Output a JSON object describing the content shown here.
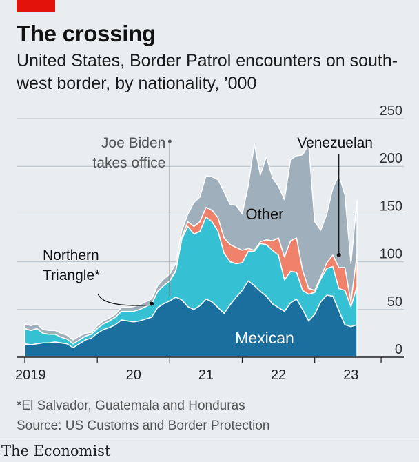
{
  "header": {
    "title": "The crossing",
    "subtitle": "United States, Border Patrol encounters on south-west border, by nationality, ’000"
  },
  "footer": {
    "footnote": "*El Salvador, Guatemala and Honduras",
    "source": "Source: US Customs and Border Protection",
    "brand": "The Economist"
  },
  "colors": {
    "mexican": "#1a6f9e",
    "northern_triangle": "#36c0d3",
    "venezuelan": "#f0826b",
    "other": "#9fafbb",
    "background": "#e9edf0",
    "brand_red": "#e3120b"
  },
  "chart_data": {
    "type": "area",
    "stacked": true,
    "title": "The crossing",
    "subtitle": "United States, Border Patrol encounters on south-west border, by nationality, ’000",
    "x": [
      "2019-01",
      "2019-02",
      "2019-03",
      "2019-04",
      "2019-05",
      "2019-06",
      "2019-07",
      "2019-08",
      "2019-09",
      "2019-10",
      "2019-11",
      "2019-12",
      "2020-01",
      "2020-02",
      "2020-03",
      "2020-04",
      "2020-05",
      "2020-06",
      "2020-07",
      "2020-08",
      "2020-09",
      "2020-10",
      "2020-11",
      "2020-12",
      "2021-01",
      "2021-02",
      "2021-03",
      "2021-04",
      "2021-05",
      "2021-06",
      "2021-07",
      "2021-08",
      "2021-09",
      "2021-10",
      "2021-11",
      "2021-12",
      "2022-01",
      "2022-02",
      "2022-03",
      "2022-04",
      "2022-05",
      "2022-06",
      "2022-07",
      "2022-08",
      "2022-09",
      "2022-10",
      "2022-11",
      "2022-12",
      "2023-01",
      "2023-02",
      "2023-03",
      "2023-04",
      "2023-05",
      "2023-06",
      "2023-07",
      "2023-08"
    ],
    "x_tick_labels": [
      "2019",
      "20",
      "21",
      "22",
      "23"
    ],
    "series": [
      {
        "name": "Mexican",
        "values": [
          14,
          13,
          14,
          15,
          15,
          16,
          15,
          14,
          10,
          14,
          18,
          20,
          25,
          29,
          31,
          34,
          39,
          38,
          37,
          38,
          40,
          42,
          52,
          56,
          59,
          63,
          60,
          53,
          50,
          54,
          61,
          58,
          52,
          46,
          55,
          63,
          70,
          80,
          75,
          69,
          64,
          56,
          52,
          48,
          57,
          61,
          50,
          38,
          45,
          58,
          65,
          64,
          49,
          34,
          32,
          34
        ]
      },
      {
        "name": "Northern Triangle",
        "values": [
          16,
          15,
          16,
          10,
          9,
          8,
          6,
          5,
          4,
          4,
          4,
          4,
          5,
          6,
          7,
          8,
          9,
          10,
          11,
          12,
          13,
          14,
          17,
          19,
          21,
          27,
          64,
          84,
          79,
          78,
          86,
          84,
          80,
          63,
          45,
          35,
          29,
          31,
          36,
          50,
          54,
          56,
          55,
          33,
          33,
          28,
          20,
          28,
          23,
          24,
          28,
          31,
          23,
          36,
          21,
          40
        ]
      },
      {
        "name": "Venezuelan",
        "values": [
          0,
          0,
          0,
          0,
          0,
          0,
          0,
          0,
          0,
          0,
          0,
          0,
          0,
          0,
          0,
          0,
          0,
          0,
          0,
          0,
          0,
          0,
          0,
          0,
          0,
          1,
          2,
          5,
          8,
          10,
          10,
          12,
          14,
          16,
          18,
          17,
          13,
          3,
          1,
          2,
          5,
          10,
          18,
          24,
          32,
          36,
          21,
          6,
          2,
          2,
          6,
          12,
          22,
          24,
          5,
          34
        ]
      },
      {
        "name": "Other",
        "values": [
          5,
          5,
          5,
          4,
          4,
          4,
          4,
          4,
          4,
          4,
          3,
          2,
          3,
          3,
          3,
          3,
          4,
          4,
          5,
          5,
          5,
          5,
          6,
          7,
          7,
          7,
          7,
          8,
          25,
          26,
          33,
          35,
          40,
          48,
          42,
          44,
          38,
          66,
          111,
          70,
          87,
          66,
          54,
          60,
          85,
          86,
          121,
          151,
          72,
          49,
          51,
          70,
          97,
          76,
          40,
          56
        ]
      }
    ],
    "ylim": [
      0,
      250
    ],
    "yticks": [
      0,
      50,
      100,
      150,
      200,
      250
    ],
    "grid": true,
    "y_axis_side": "right",
    "annotations": [
      {
        "text": "Joe Biden takes office",
        "x": "2021-01"
      },
      {
        "text": "Northern Triangle*",
        "x": "2020-10"
      },
      {
        "text": "Venezuelan",
        "x": "2023-05"
      },
      {
        "text": "Other"
      },
      {
        "text": "Mexican"
      }
    ]
  }
}
